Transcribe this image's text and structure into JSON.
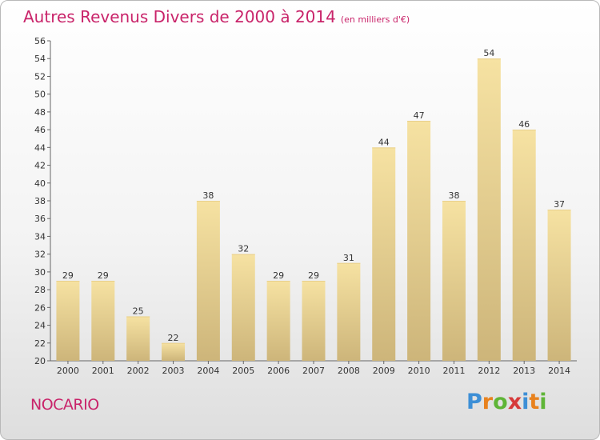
{
  "title": "Autres Revenus Divers de 2000 à 2014",
  "subtitle": "(en milliers d'€)",
  "commune": "NOCARIO",
  "logo": {
    "letters": [
      "P",
      "r",
      "o",
      "x",
      "i",
      "t",
      "i"
    ],
    "colors": [
      "#3d8fd6",
      "#e8821e",
      "#5fb537",
      "#d63a3a",
      "#3d8fd6",
      "#e8821e",
      "#5fb537"
    ]
  },
  "colors": {
    "title": "#c9246a",
    "bar_light": "#f6e2a2",
    "bar_dark": "#cdb57a"
  },
  "chart_data": {
    "type": "bar",
    "title": "Autres Revenus Divers de 2000 à 2014",
    "subtitle": "(en milliers d'€)",
    "categories": [
      "2000",
      "2001",
      "2002",
      "2003",
      "2004",
      "2005",
      "2006",
      "2007",
      "2008",
      "2009",
      "2010",
      "2011",
      "2012",
      "2013",
      "2014"
    ],
    "values": [
      29,
      29,
      25,
      22,
      38,
      32,
      29,
      29,
      31,
      44,
      47,
      38,
      54,
      46,
      37
    ],
    "ylim": [
      20,
      56
    ],
    "ytick_step": 2,
    "grid": false,
    "legend": false
  }
}
